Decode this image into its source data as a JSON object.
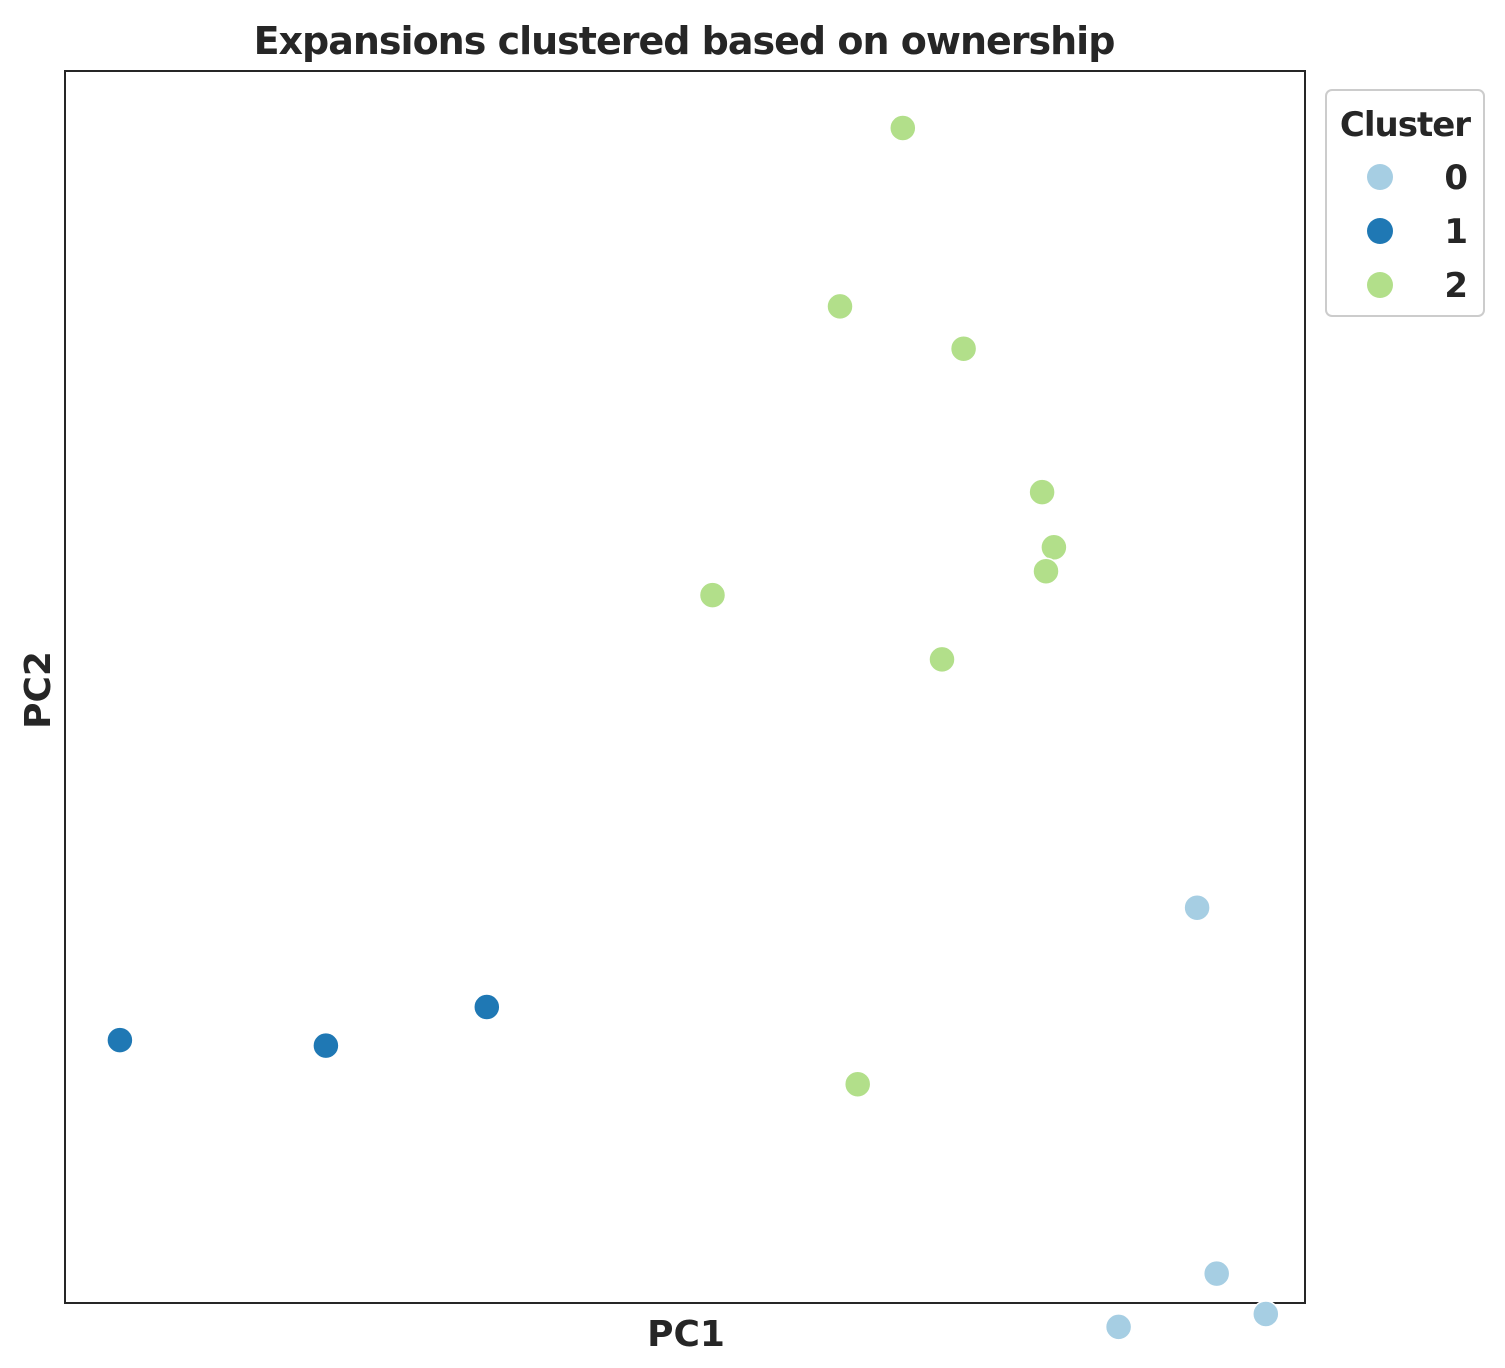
{
  "chart_data": {
    "type": "scatter",
    "title": "Expansions clustered based on ownership",
    "xlabel": "PC1",
    "ylabel": "PC2",
    "xlim": [
      -0.27,
      6.05
    ],
    "ylim": [
      -6.05,
      0.65
    ],
    "xticks": [],
    "yticks": [],
    "grid": false,
    "legend": {
      "title": "Cluster",
      "placement": "outside-top-right"
    },
    "series": [
      {
        "name": "0",
        "color": "#a6cee3",
        "points": [
          {
            "x": 5.5,
            "y": -3.9
          },
          {
            "x": 5.6,
            "y": -5.89
          },
          {
            "x": 5.85,
            "y": -6.11
          },
          {
            "x": 5.1,
            "y": -6.18
          }
        ]
      },
      {
        "name": "1",
        "color": "#1f78b4",
        "points": [
          {
            "x": 0.01,
            "y": -4.62
          },
          {
            "x": 1.06,
            "y": -4.65
          },
          {
            "x": 1.88,
            "y": -4.44
          }
        ]
      },
      {
        "name": "2",
        "color": "#b2df8a",
        "points": [
          {
            "x": 4.0,
            "y": 0.34
          },
          {
            "x": 3.68,
            "y": -0.63
          },
          {
            "x": 4.31,
            "y": -0.86
          },
          {
            "x": 4.71,
            "y": -1.64
          },
          {
            "x": 4.77,
            "y": -1.94
          },
          {
            "x": 4.73,
            "y": -2.07
          },
          {
            "x": 3.03,
            "y": -2.2
          },
          {
            "x": 4.2,
            "y": -2.55
          },
          {
            "x": 3.77,
            "y": -4.86
          }
        ]
      }
    ]
  }
}
